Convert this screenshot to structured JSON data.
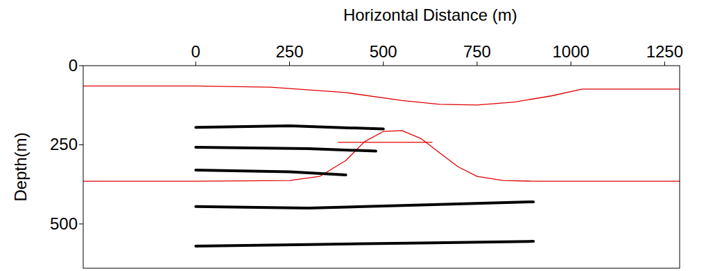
{
  "chart_data": {
    "type": "line",
    "x_label": "Horizontal Distance (m)",
    "y_label": "Depth(m)",
    "xlim": [
      -300,
      1290
    ],
    "xticks": [
      0,
      250,
      500,
      750,
      1000,
      1250
    ],
    "ylim": [
      0,
      640
    ],
    "yticks": [
      0,
      250,
      500
    ],
    "series": [
      {
        "color": "#e00000",
        "line_style": "solid",
        "x": [
          -300,
          0,
          200,
          400,
          550,
          650,
          750,
          850,
          950,
          1030,
          1290
        ],
        "values": [
          64,
          64,
          68,
          85,
          110,
          122,
          124,
          115,
          95,
          74,
          74
        ]
      },
      {
        "color": "#e00000",
        "line_style": "solid",
        "x": [
          -300,
          0,
          250,
          330,
          400,
          450,
          500,
          550,
          600,
          650,
          700,
          750,
          820,
          900,
          1290
        ],
        "values": [
          365,
          365,
          363,
          350,
          300,
          240,
          208,
          205,
          230,
          275,
          320,
          350,
          363,
          365,
          365
        ]
      },
      {
        "color": "#e00000",
        "line_style": "solid",
        "x": [
          380,
          630
        ],
        "values": [
          242,
          242
        ]
      },
      {
        "color": "#000000",
        "line_style": "solid",
        "x": [
          0,
          250,
          500
        ],
        "values": [
          195,
          190,
          200
        ]
      },
      {
        "color": "#000000",
        "line_style": "solid",
        "x": [
          0,
          300,
          480
        ],
        "values": [
          258,
          262,
          270
        ]
      },
      {
        "color": "#000000",
        "line_style": "solid",
        "x": [
          0,
          250,
          400
        ],
        "values": [
          330,
          335,
          345
        ]
      },
      {
        "color": "#000000",
        "line_style": "solid",
        "x": [
          0,
          300,
          600,
          900
        ],
        "values": [
          445,
          450,
          440,
          430
        ]
      },
      {
        "color": "#000000",
        "line_style": "solid",
        "x": [
          0,
          300,
          600,
          900
        ],
        "values": [
          570,
          565,
          560,
          555
        ]
      }
    ]
  }
}
